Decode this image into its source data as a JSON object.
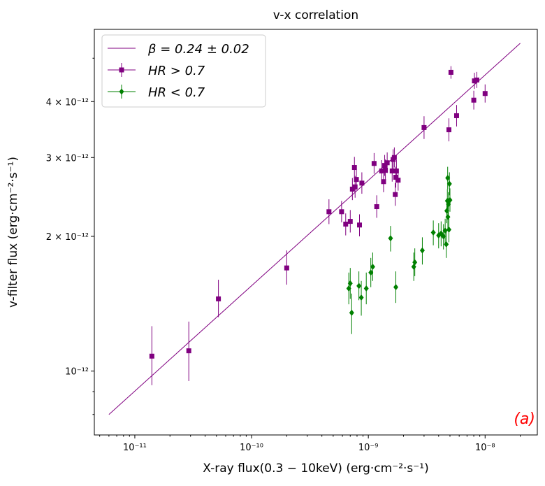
{
  "chart_data": {
    "type": "scatter",
    "title": "v-x correlation",
    "xlabel": "X-ray flux(0.3 − 10keV) (erg·cm⁻²·s⁻¹)",
    "ylabel": "v-filter flux (erg·cm⁻²·s⁻¹)",
    "xscale": "log",
    "yscale": "log",
    "xlim": [
      4.5e-12,
      2.8e-08
    ],
    "ylim": [
      7.2e-13,
      5.8e-12
    ],
    "x_tick_labels": [
      {
        "value": 1e-11,
        "text": "10⁻¹¹"
      },
      {
        "value": 1e-10,
        "text": "10⁻¹⁰"
      },
      {
        "value": 1e-09,
        "text": "10⁻⁹"
      },
      {
        "value": 1e-08,
        "text": "10⁻⁸"
      }
    ],
    "y_tick_labels": [
      {
        "value": 1e-12,
        "text": "10⁻¹²"
      },
      {
        "value": 2e-12,
        "text": "2 × 10⁻¹²"
      },
      {
        "value": 3e-12,
        "text": "3 × 10⁻¹²"
      },
      {
        "value": 4e-12,
        "text": "4 × 10⁻¹²"
      }
    ],
    "grid": false,
    "legend_position": "top-left",
    "panel_tag": "(a)",
    "fit_line": {
      "label": "β = 0.24 ± 0.02",
      "color": "#800080",
      "x": [
        6e-12,
        2e-08
      ],
      "y": [
        8e-13,
        5.4e-12
      ]
    },
    "series": [
      {
        "name": "HR > 0.7",
        "marker": "square",
        "color": "#800080",
        "points": [
          {
            "x": 1.4e-11,
            "y": 1.08e-12,
            "ylo": 9.3e-13,
            "yhi": 1.26e-12
          },
          {
            "x": 2.9e-11,
            "y": 1.11e-12,
            "ylo": 9.5e-13,
            "yhi": 1.29e-12
          },
          {
            "x": 5.2e-11,
            "y": 1.45e-12,
            "ylo": 1.32e-12,
            "yhi": 1.6e-12
          },
          {
            "x": 2e-10,
            "y": 1.7e-12,
            "ylo": 1.56e-12,
            "yhi": 1.86e-12
          },
          {
            "x": 4.6e-10,
            "y": 2.27e-12,
            "ylo": 2.13e-12,
            "yhi": 2.42e-12
          },
          {
            "x": 5.9e-10,
            "y": 2.27e-12,
            "ylo": 2.15e-12,
            "yhi": 2.4e-12
          },
          {
            "x": 6.4e-10,
            "y": 2.13e-12,
            "ylo": 2.01e-12,
            "yhi": 2.25e-12
          },
          {
            "x": 7e-10,
            "y": 2.16e-12,
            "ylo": 2.04e-12,
            "yhi": 2.29e-12
          },
          {
            "x": 7.3e-10,
            "y": 2.55e-12,
            "ylo": 2.41e-12,
            "yhi": 2.7e-12
          },
          {
            "x": 7.6e-10,
            "y": 2.85e-12,
            "ylo": 2.7e-12,
            "yhi": 3.01e-12
          },
          {
            "x": 7.7e-10,
            "y": 2.58e-12,
            "ylo": 2.44e-12,
            "yhi": 2.73e-12
          },
          {
            "x": 7.9e-10,
            "y": 2.68e-12,
            "ylo": 2.54e-12,
            "yhi": 2.83e-12
          },
          {
            "x": 8.4e-10,
            "y": 2.12e-12,
            "ylo": 2e-12,
            "yhi": 2.24e-12
          },
          {
            "x": 8.8e-10,
            "y": 2.63e-12,
            "ylo": 2.49e-12,
            "yhi": 2.78e-12
          },
          {
            "x": 1.12e-09,
            "y": 2.91e-12,
            "ylo": 2.76e-12,
            "yhi": 3.07e-12
          },
          {
            "x": 1.18e-09,
            "y": 2.33e-12,
            "ylo": 2.2e-12,
            "yhi": 2.47e-12
          },
          {
            "x": 1.3e-09,
            "y": 2.8e-12,
            "ylo": 2.65e-12,
            "yhi": 2.96e-12
          },
          {
            "x": 1.35e-09,
            "y": 2.65e-12,
            "ylo": 2.51e-12,
            "yhi": 2.8e-12
          },
          {
            "x": 1.38e-09,
            "y": 2.88e-12,
            "ylo": 2.73e-12,
            "yhi": 3.04e-12
          },
          {
            "x": 1.4e-09,
            "y": 2.81e-12,
            "ylo": 2.66e-12,
            "yhi": 2.97e-12
          },
          {
            "x": 1.45e-09,
            "y": 2.92e-12,
            "ylo": 2.77e-12,
            "yhi": 3.08e-12
          },
          {
            "x": 1.6e-09,
            "y": 2.8e-12,
            "ylo": 2.65e-12,
            "yhi": 2.96e-12
          },
          {
            "x": 1.63e-09,
            "y": 2.97e-12,
            "ylo": 2.82e-12,
            "yhi": 3.13e-12
          },
          {
            "x": 1.67e-09,
            "y": 3e-12,
            "ylo": 2.85e-12,
            "yhi": 3.16e-12
          },
          {
            "x": 1.7e-09,
            "y": 2.48e-12,
            "ylo": 2.34e-12,
            "yhi": 2.63e-12
          },
          {
            "x": 1.72e-09,
            "y": 2.71e-12,
            "ylo": 2.57e-12,
            "yhi": 2.86e-12
          },
          {
            "x": 1.74e-09,
            "y": 2.8e-12,
            "ylo": 2.65e-12,
            "yhi": 2.96e-12
          },
          {
            "x": 1.8e-09,
            "y": 2.67e-12,
            "ylo": 2.53e-12,
            "yhi": 2.82e-12
          },
          {
            "x": 3e-09,
            "y": 3.5e-12,
            "ylo": 3.3e-12,
            "yhi": 3.71e-12
          },
          {
            "x": 4.9e-09,
            "y": 3.46e-12,
            "ylo": 3.26e-12,
            "yhi": 3.67e-12
          },
          {
            "x": 5.1e-09,
            "y": 4.65e-12,
            "ylo": 4.5e-12,
            "yhi": 4.8e-12
          },
          {
            "x": 5.7e-09,
            "y": 3.72e-12,
            "ylo": 3.52e-12,
            "yhi": 3.93e-12
          },
          {
            "x": 8e-09,
            "y": 4.03e-12,
            "ylo": 3.84e-12,
            "yhi": 4.23e-12
          },
          {
            "x": 8.1e-09,
            "y": 4.45e-12,
            "ylo": 4.27e-12,
            "yhi": 4.64e-12
          },
          {
            "x": 8.5e-09,
            "y": 4.47e-12,
            "ylo": 4.29e-12,
            "yhi": 4.66e-12
          },
          {
            "x": 1e-08,
            "y": 4.17e-12,
            "ylo": 3.98e-12,
            "yhi": 4.37e-12
          }
        ]
      },
      {
        "name": "HR < 0.7",
        "marker": "diamond",
        "color": "#008000",
        "points": [
          {
            "x": 6.8e-10,
            "y": 1.53e-12,
            "ylo": 1.41e-12,
            "yhi": 1.66e-12
          },
          {
            "x": 7e-10,
            "y": 1.57e-12,
            "ylo": 1.45e-12,
            "yhi": 1.7e-12
          },
          {
            "x": 7.2e-10,
            "y": 1.35e-12,
            "ylo": 1.21e-12,
            "yhi": 1.49e-12
          },
          {
            "x": 8.3e-10,
            "y": 1.55e-12,
            "ylo": 1.44e-12,
            "yhi": 1.67e-12
          },
          {
            "x": 8.7e-10,
            "y": 1.46e-12,
            "ylo": 1.33e-12,
            "yhi": 1.59e-12
          },
          {
            "x": 9.6e-10,
            "y": 1.53e-12,
            "ylo": 1.41e-12,
            "yhi": 1.66e-12
          },
          {
            "x": 1.05e-09,
            "y": 1.66e-12,
            "ylo": 1.54e-12,
            "yhi": 1.79e-12
          },
          {
            "x": 1.09e-09,
            "y": 1.71e-12,
            "ylo": 1.59e-12,
            "yhi": 1.84e-12
          },
          {
            "x": 1.55e-09,
            "y": 1.98e-12,
            "ylo": 1.85e-12,
            "yhi": 2.11e-12
          },
          {
            "x": 1.72e-09,
            "y": 1.54e-12,
            "ylo": 1.42e-12,
            "yhi": 1.67e-12
          },
          {
            "x": 2.45e-09,
            "y": 1.71e-12,
            "ylo": 1.59e-12,
            "yhi": 1.84e-12
          },
          {
            "x": 2.5e-09,
            "y": 1.75e-12,
            "ylo": 1.63e-12,
            "yhi": 1.88e-12
          },
          {
            "x": 2.9e-09,
            "y": 1.86e-12,
            "ylo": 1.73e-12,
            "yhi": 1.99e-12
          },
          {
            "x": 3.6e-09,
            "y": 2.04e-12,
            "ylo": 1.91e-12,
            "yhi": 2.17e-12
          },
          {
            "x": 4e-09,
            "y": 2.01e-12,
            "ylo": 1.88e-12,
            "yhi": 2.14e-12
          },
          {
            "x": 4.2e-09,
            "y": 2.03e-12,
            "ylo": 1.9e-12,
            "yhi": 2.16e-12
          },
          {
            "x": 4.4e-09,
            "y": 2e-12,
            "ylo": 1.87e-12,
            "yhi": 2.13e-12
          },
          {
            "x": 4.55e-09,
            "y": 2.06e-12,
            "ylo": 1.93e-12,
            "yhi": 2.19e-12
          },
          {
            "x": 4.65e-09,
            "y": 1.92e-12,
            "ylo": 1.79e-12,
            "yhi": 2.05e-12
          },
          {
            "x": 4.7e-09,
            "y": 2.28e-12,
            "ylo": 2.14e-12,
            "yhi": 2.42e-12
          },
          {
            "x": 4.75e-09,
            "y": 2.4e-12,
            "ylo": 2.26e-12,
            "yhi": 2.55e-12
          },
          {
            "x": 4.78e-09,
            "y": 2.7e-12,
            "ylo": 2.55e-12,
            "yhi": 2.86e-12
          },
          {
            "x": 4.8e-09,
            "y": 2.21e-12,
            "ylo": 2.08e-12,
            "yhi": 2.35e-12
          },
          {
            "x": 4.85e-09,
            "y": 2.36e-12,
            "ylo": 2.22e-12,
            "yhi": 2.51e-12
          },
          {
            "x": 4.9e-09,
            "y": 2.07e-12,
            "ylo": 1.94e-12,
            "yhi": 2.21e-12
          },
          {
            "x": 4.95e-09,
            "y": 2.62e-12,
            "ylo": 2.47e-12,
            "yhi": 2.78e-12
          },
          {
            "x": 5e-09,
            "y": 2.41e-12,
            "ylo": 2.27e-12,
            "yhi": 2.56e-12
          }
        ]
      }
    ]
  }
}
